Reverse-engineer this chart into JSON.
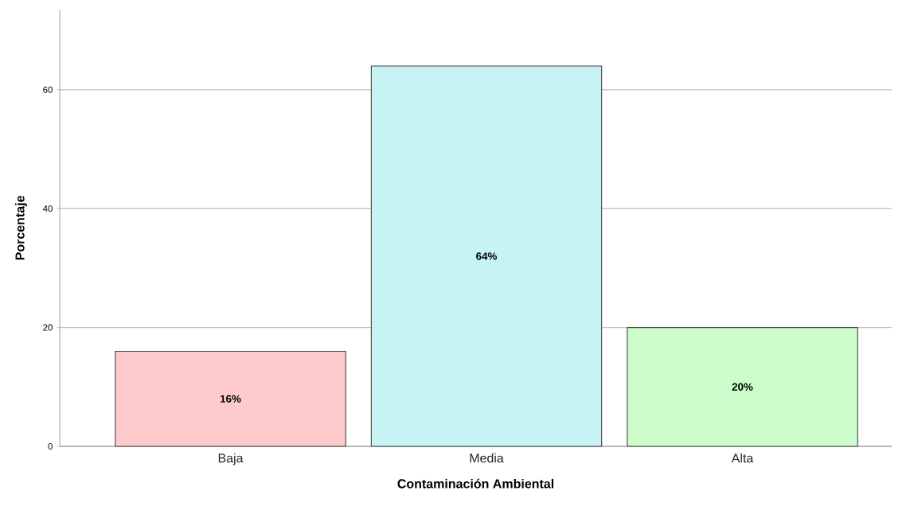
{
  "chart_data": {
    "type": "bar",
    "xlabel": "Contaminación Ambiental",
    "ylabel": "Porcentaje",
    "categories": [
      "Baja",
      "Media",
      "Alta"
    ],
    "values": [
      16,
      64,
      20
    ],
    "colors": [
      "#fdcbcb",
      "#c8f3f4",
      "#ccfdcb"
    ],
    "value_labels": [
      "16%",
      "64%",
      "20%"
    ],
    "ylim": [
      0,
      73.5
    ],
    "yticks": [
      0,
      20,
      40,
      60
    ],
    "grid": "y"
  }
}
